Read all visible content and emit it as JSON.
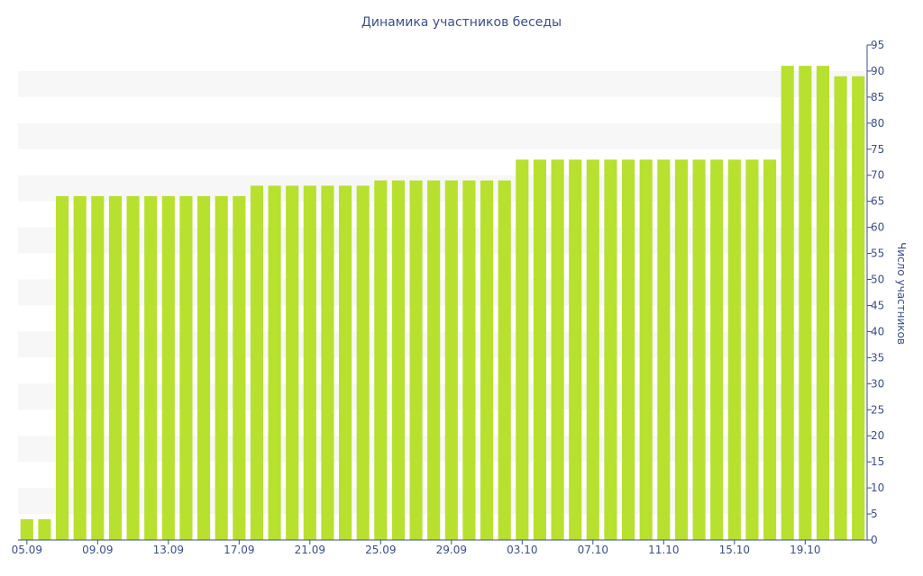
{
  "chart_data": {
    "type": "bar",
    "title": "Динамика участников беседы",
    "xlabel": "",
    "ylabel": "Число участников",
    "ylim": [
      0,
      95
    ],
    "y_ticks": [
      0,
      5,
      10,
      15,
      20,
      25,
      30,
      35,
      40,
      45,
      50,
      55,
      60,
      65,
      70,
      75,
      80,
      85,
      90,
      95
    ],
    "y_axis_side": "right",
    "grid": "alternating horizontal bands",
    "categories": [
      "05.09",
      "06.09",
      "07.09",
      "08.09",
      "09.09",
      "10.09",
      "11.09",
      "12.09",
      "13.09",
      "14.09",
      "15.09",
      "16.09",
      "17.09",
      "18.09",
      "19.09",
      "20.09",
      "21.09",
      "22.09",
      "23.09",
      "24.09",
      "25.09",
      "26.09",
      "27.09",
      "28.09",
      "29.09",
      "30.09",
      "01.10",
      "02.10",
      "03.10",
      "04.10",
      "05.10",
      "06.10",
      "07.10",
      "08.10",
      "09.10",
      "10.10",
      "11.10",
      "12.10",
      "13.10",
      "14.10",
      "15.10",
      "16.10",
      "17.10",
      "18.10",
      "19.10",
      "20.10",
      "21.10",
      "22.10"
    ],
    "x_tick_labels": [
      "05.09",
      "09.09",
      "13.09",
      "17.09",
      "21.09",
      "25.09",
      "29.09",
      "03.10",
      "07.10",
      "11.10",
      "15.10",
      "19.10"
    ],
    "values": [
      4,
      4,
      66,
      66,
      66,
      66,
      66,
      66,
      66,
      66,
      66,
      66,
      66,
      68,
      68,
      68,
      68,
      68,
      68,
      68,
      69,
      69,
      69,
      69,
      69,
      69,
      69,
      69,
      73,
      73,
      73,
      73,
      73,
      73,
      73,
      73,
      73,
      73,
      73,
      73,
      73,
      73,
      73,
      91,
      91,
      91,
      89,
      89
    ],
    "colors": {
      "bar": "#b8e02e",
      "band": "#f7f7f7",
      "text": "#3b4f8c",
      "axis": "#3b4f8c"
    }
  }
}
